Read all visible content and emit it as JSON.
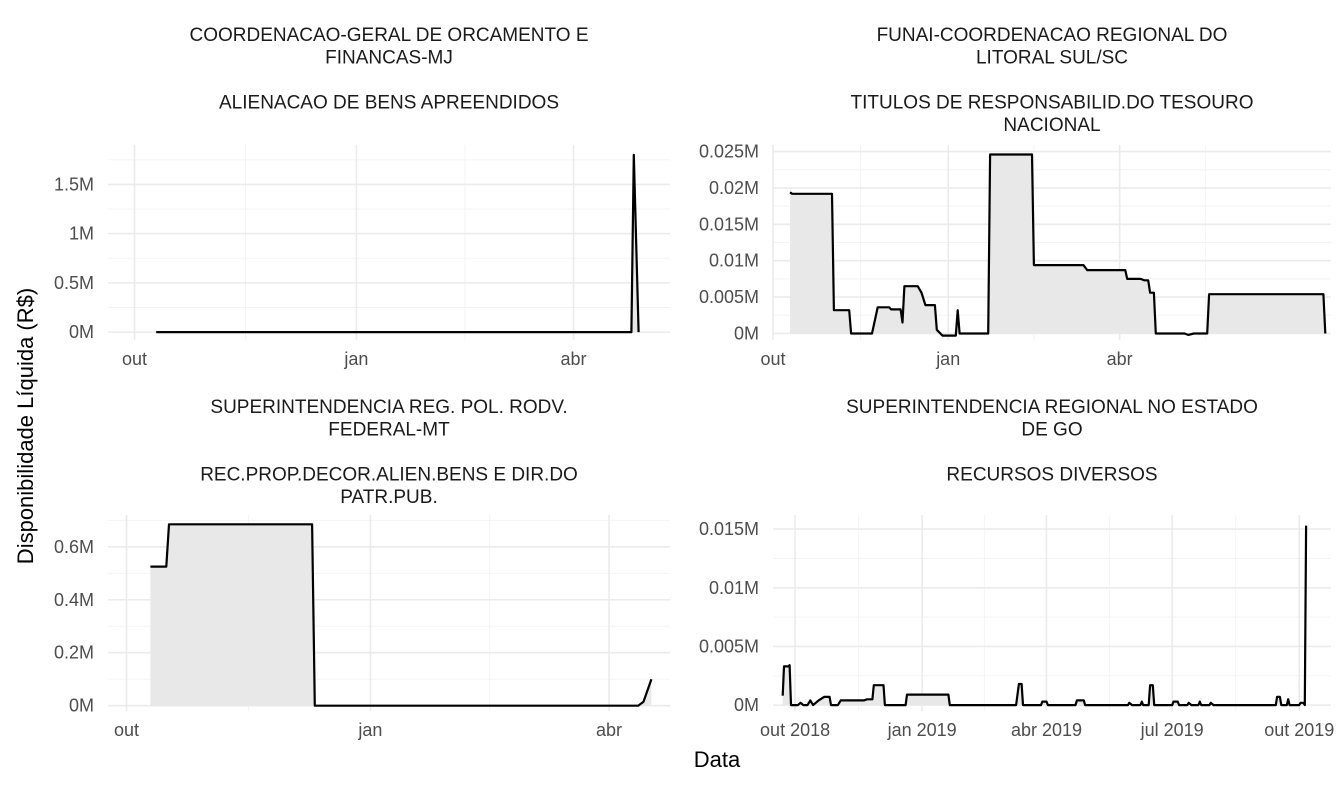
{
  "chart_data": {
    "ylabel": "Disponibilidade Líquida (R$)",
    "xlabel": "Data",
    "panels": [
      {
        "type": "area",
        "title_lines": [
          "COORDENACAO-GERAL DE ORCAMENTO E",
          "FINANCAS-MJ",
          "",
          "ALIENACAO DE BENS APREENDIDOS"
        ],
        "xlim": [
          "2018-09-20",
          "2019-05-11"
        ],
        "ylim": [
          -80000,
          1900000
        ],
        "x_ticks": [
          {
            "date": "2018-10-01",
            "label": "out"
          },
          {
            "date": "2019-01-01",
            "label": "jan"
          },
          {
            "date": "2019-04-01",
            "label": "abr"
          }
        ],
        "y_ticks": [
          {
            "value": 0,
            "label": "0M"
          },
          {
            "value": 500000,
            "label": "0.5M"
          },
          {
            "value": 1000000,
            "label": "1M"
          },
          {
            "value": 1500000,
            "label": "1.5M"
          }
        ],
        "points": [
          [
            "2018-10-10",
            0
          ],
          [
            "2019-04-25",
            0
          ],
          [
            "2019-04-26",
            1800000
          ],
          [
            "2019-04-28",
            0
          ]
        ]
      },
      {
        "type": "area",
        "title_lines": [
          "FUNAI-COORDENACAO REGIONAL DO",
          "LITORAL SUL/SC",
          "",
          "TITULOS DE RESPONSABILID.DO TESOURO",
          "NACIONAL"
        ],
        "xlim": [
          "2018-10-01",
          "2019-07-21"
        ],
        "ylim": [
          -900,
          25900
        ],
        "x_ticks": [
          {
            "date": "2018-10-01",
            "label": "out"
          },
          {
            "date": "2019-01-01",
            "label": "jan"
          },
          {
            "date": "2019-04-01",
            "label": "abr"
          }
        ],
        "y_ticks": [
          {
            "value": 0,
            "label": "0M"
          },
          {
            "value": 5000,
            "label": "0.005M"
          },
          {
            "value": 10000,
            "label": "0.01M"
          },
          {
            "value": 15000,
            "label": "0.015M"
          },
          {
            "value": 20000,
            "label": "0.02M"
          },
          {
            "value": 25000,
            "label": "0.025M"
          }
        ],
        "points": [
          [
            "2018-10-10",
            19400
          ],
          [
            "2018-10-11",
            19200
          ],
          [
            "2018-11-01",
            19200
          ],
          [
            "2018-11-02",
            3200
          ],
          [
            "2018-11-10",
            3200
          ],
          [
            "2018-11-11",
            0
          ],
          [
            "2018-11-22",
            0
          ],
          [
            "2018-11-25",
            3600
          ],
          [
            "2018-12-01",
            3600
          ],
          [
            "2018-12-02",
            3300
          ],
          [
            "2018-12-07",
            3300
          ],
          [
            "2018-12-08",
            1500
          ],
          [
            "2018-12-09",
            6500
          ],
          [
            "2018-12-16",
            6500
          ],
          [
            "2018-12-18",
            5600
          ],
          [
            "2018-12-20",
            3900
          ],
          [
            "2018-12-25",
            3900
          ],
          [
            "2018-12-26",
            500
          ],
          [
            "2018-12-29",
            -300
          ],
          [
            "2019-01-05",
            -300
          ],
          [
            "2019-01-06",
            3200
          ],
          [
            "2019-01-07",
            0
          ],
          [
            "2019-01-22",
            0
          ],
          [
            "2019-01-23",
            24600
          ],
          [
            "2019-02-14",
            24600
          ],
          [
            "2019-02-15",
            9400
          ],
          [
            "2019-03-13",
            9400
          ],
          [
            "2019-03-15",
            8700
          ],
          [
            "2019-04-04",
            8700
          ],
          [
            "2019-04-05",
            7500
          ],
          [
            "2019-04-12",
            7500
          ],
          [
            "2019-04-14",
            7300
          ],
          [
            "2019-04-16",
            7300
          ],
          [
            "2019-04-17",
            5600
          ],
          [
            "2019-04-19",
            5600
          ],
          [
            "2019-04-20",
            0
          ],
          [
            "2019-05-05",
            0
          ],
          [
            "2019-05-07",
            -200
          ],
          [
            "2019-05-10",
            0
          ],
          [
            "2019-05-17",
            0
          ],
          [
            "2019-05-18",
            5400
          ],
          [
            "2019-07-17",
            5400
          ],
          [
            "2019-07-18",
            0
          ]
        ]
      },
      {
        "type": "area",
        "title_lines": [
          "SUPERINTENDENCIA REG. POL. RODV.",
          "FEDERAL-MT",
          "",
          "REC.PROP.DECOR.ALIEN.BENS E DIR.DO",
          "PATR.PUB."
        ],
        "xlim": [
          "2018-09-24",
          "2019-04-24"
        ],
        "ylim": [
          -20000,
          720000
        ],
        "x_ticks": [
          {
            "date": "2018-10-01",
            "label": "out"
          },
          {
            "date": "2019-01-01",
            "label": "jan"
          },
          {
            "date": "2019-04-01",
            "label": "abr"
          }
        ],
        "y_ticks": [
          {
            "value": 0,
            "label": "0M"
          },
          {
            "value": 200000,
            "label": "0.2M"
          },
          {
            "value": 400000,
            "label": "0.4M"
          },
          {
            "value": 600000,
            "label": "0.6M"
          }
        ],
        "points": [
          [
            "2018-10-10",
            525000
          ],
          [
            "2018-10-16",
            525000
          ],
          [
            "2018-10-17",
            685000
          ],
          [
            "2018-12-10",
            685000
          ],
          [
            "2018-12-11",
            0
          ],
          [
            "2019-04-12",
            0
          ],
          [
            "2019-04-14",
            15000
          ],
          [
            "2019-04-17",
            100000
          ]
        ]
      },
      {
        "type": "area",
        "title_lines": [
          "SUPERINTENDENCIA REGIONAL NO ESTADO",
          "DE GO",
          "",
          "RECURSOS DIVERSOS"
        ],
        "xlim": [
          "2018-09-15",
          "2019-10-24"
        ],
        "ylim": [
          -500,
          16200
        ],
        "x_ticks": [
          {
            "date": "2018-10-01",
            "label": "out 2018"
          },
          {
            "date": "2019-01-01",
            "label": "jan 2019"
          },
          {
            "date": "2019-04-01",
            "label": "abr 2019"
          },
          {
            "date": "2019-07-01",
            "label": "jul 2019"
          },
          {
            "date": "2019-10-01",
            "label": "out 2019"
          }
        ],
        "y_ticks": [
          {
            "value": 0,
            "label": "0M"
          },
          {
            "value": 5000,
            "label": "0.005M"
          },
          {
            "value": 10000,
            "label": "0.01M"
          },
          {
            "value": 15000,
            "label": "0.015M"
          }
        ],
        "points": [
          [
            "2018-09-22",
            800
          ],
          [
            "2018-09-23",
            3300
          ],
          [
            "2018-09-26",
            3300
          ],
          [
            "2018-09-27",
            3400
          ],
          [
            "2018-09-28",
            0
          ],
          [
            "2018-10-03",
            0
          ],
          [
            "2018-10-05",
            200
          ],
          [
            "2018-10-07",
            0
          ],
          [
            "2018-10-10",
            0
          ],
          [
            "2018-10-12",
            400
          ],
          [
            "2018-10-14",
            0
          ],
          [
            "2018-10-18",
            400
          ],
          [
            "2018-10-22",
            700
          ],
          [
            "2018-10-26",
            700
          ],
          [
            "2018-10-27",
            0
          ],
          [
            "2018-11-01",
            0
          ],
          [
            "2018-11-03",
            400
          ],
          [
            "2018-11-20",
            400
          ],
          [
            "2018-11-22",
            500
          ],
          [
            "2018-11-26",
            500
          ],
          [
            "2018-11-27",
            1700
          ],
          [
            "2018-12-04",
            1700
          ],
          [
            "2018-12-05",
            0
          ],
          [
            "2018-12-20",
            0
          ],
          [
            "2018-12-21",
            900
          ],
          [
            "2019-01-20",
            900
          ],
          [
            "2019-01-21",
            0
          ],
          [
            "2019-03-10",
            0
          ],
          [
            "2019-03-12",
            1800
          ],
          [
            "2019-03-14",
            1800
          ],
          [
            "2019-03-15",
            0
          ],
          [
            "2019-03-28",
            0
          ],
          [
            "2019-03-29",
            300
          ],
          [
            "2019-04-01",
            300
          ],
          [
            "2019-04-02",
            0
          ],
          [
            "2019-04-22",
            0
          ],
          [
            "2019-04-23",
            400
          ],
          [
            "2019-04-28",
            400
          ],
          [
            "2019-04-29",
            0
          ],
          [
            "2019-05-30",
            0
          ],
          [
            "2019-05-31",
            200
          ],
          [
            "2019-06-02",
            0
          ],
          [
            "2019-06-08",
            0
          ],
          [
            "2019-06-09",
            300
          ],
          [
            "2019-06-10",
            0
          ],
          [
            "2019-06-14",
            0
          ],
          [
            "2019-06-15",
            1700
          ],
          [
            "2019-06-17",
            1700
          ],
          [
            "2019-06-18",
            0
          ],
          [
            "2019-07-01",
            0
          ],
          [
            "2019-07-02",
            300
          ],
          [
            "2019-07-05",
            300
          ],
          [
            "2019-07-06",
            0
          ],
          [
            "2019-07-12",
            0
          ],
          [
            "2019-07-13",
            200
          ],
          [
            "2019-07-15",
            0
          ],
          [
            "2019-07-20",
            0
          ],
          [
            "2019-07-21",
            300
          ],
          [
            "2019-07-22",
            0
          ],
          [
            "2019-07-28",
            0
          ],
          [
            "2019-07-29",
            200
          ],
          [
            "2019-07-31",
            0
          ],
          [
            "2019-09-14",
            0
          ],
          [
            "2019-09-15",
            700
          ],
          [
            "2019-09-17",
            700
          ],
          [
            "2019-09-18",
            0
          ],
          [
            "2019-09-22",
            0
          ],
          [
            "2019-09-23",
            500
          ],
          [
            "2019-09-24",
            0
          ],
          [
            "2019-10-01",
            0
          ],
          [
            "2019-10-02",
            200
          ],
          [
            "2019-10-04",
            200
          ],
          [
            "2019-10-05",
            0
          ],
          [
            "2019-10-06",
            15300
          ]
        ]
      }
    ]
  }
}
